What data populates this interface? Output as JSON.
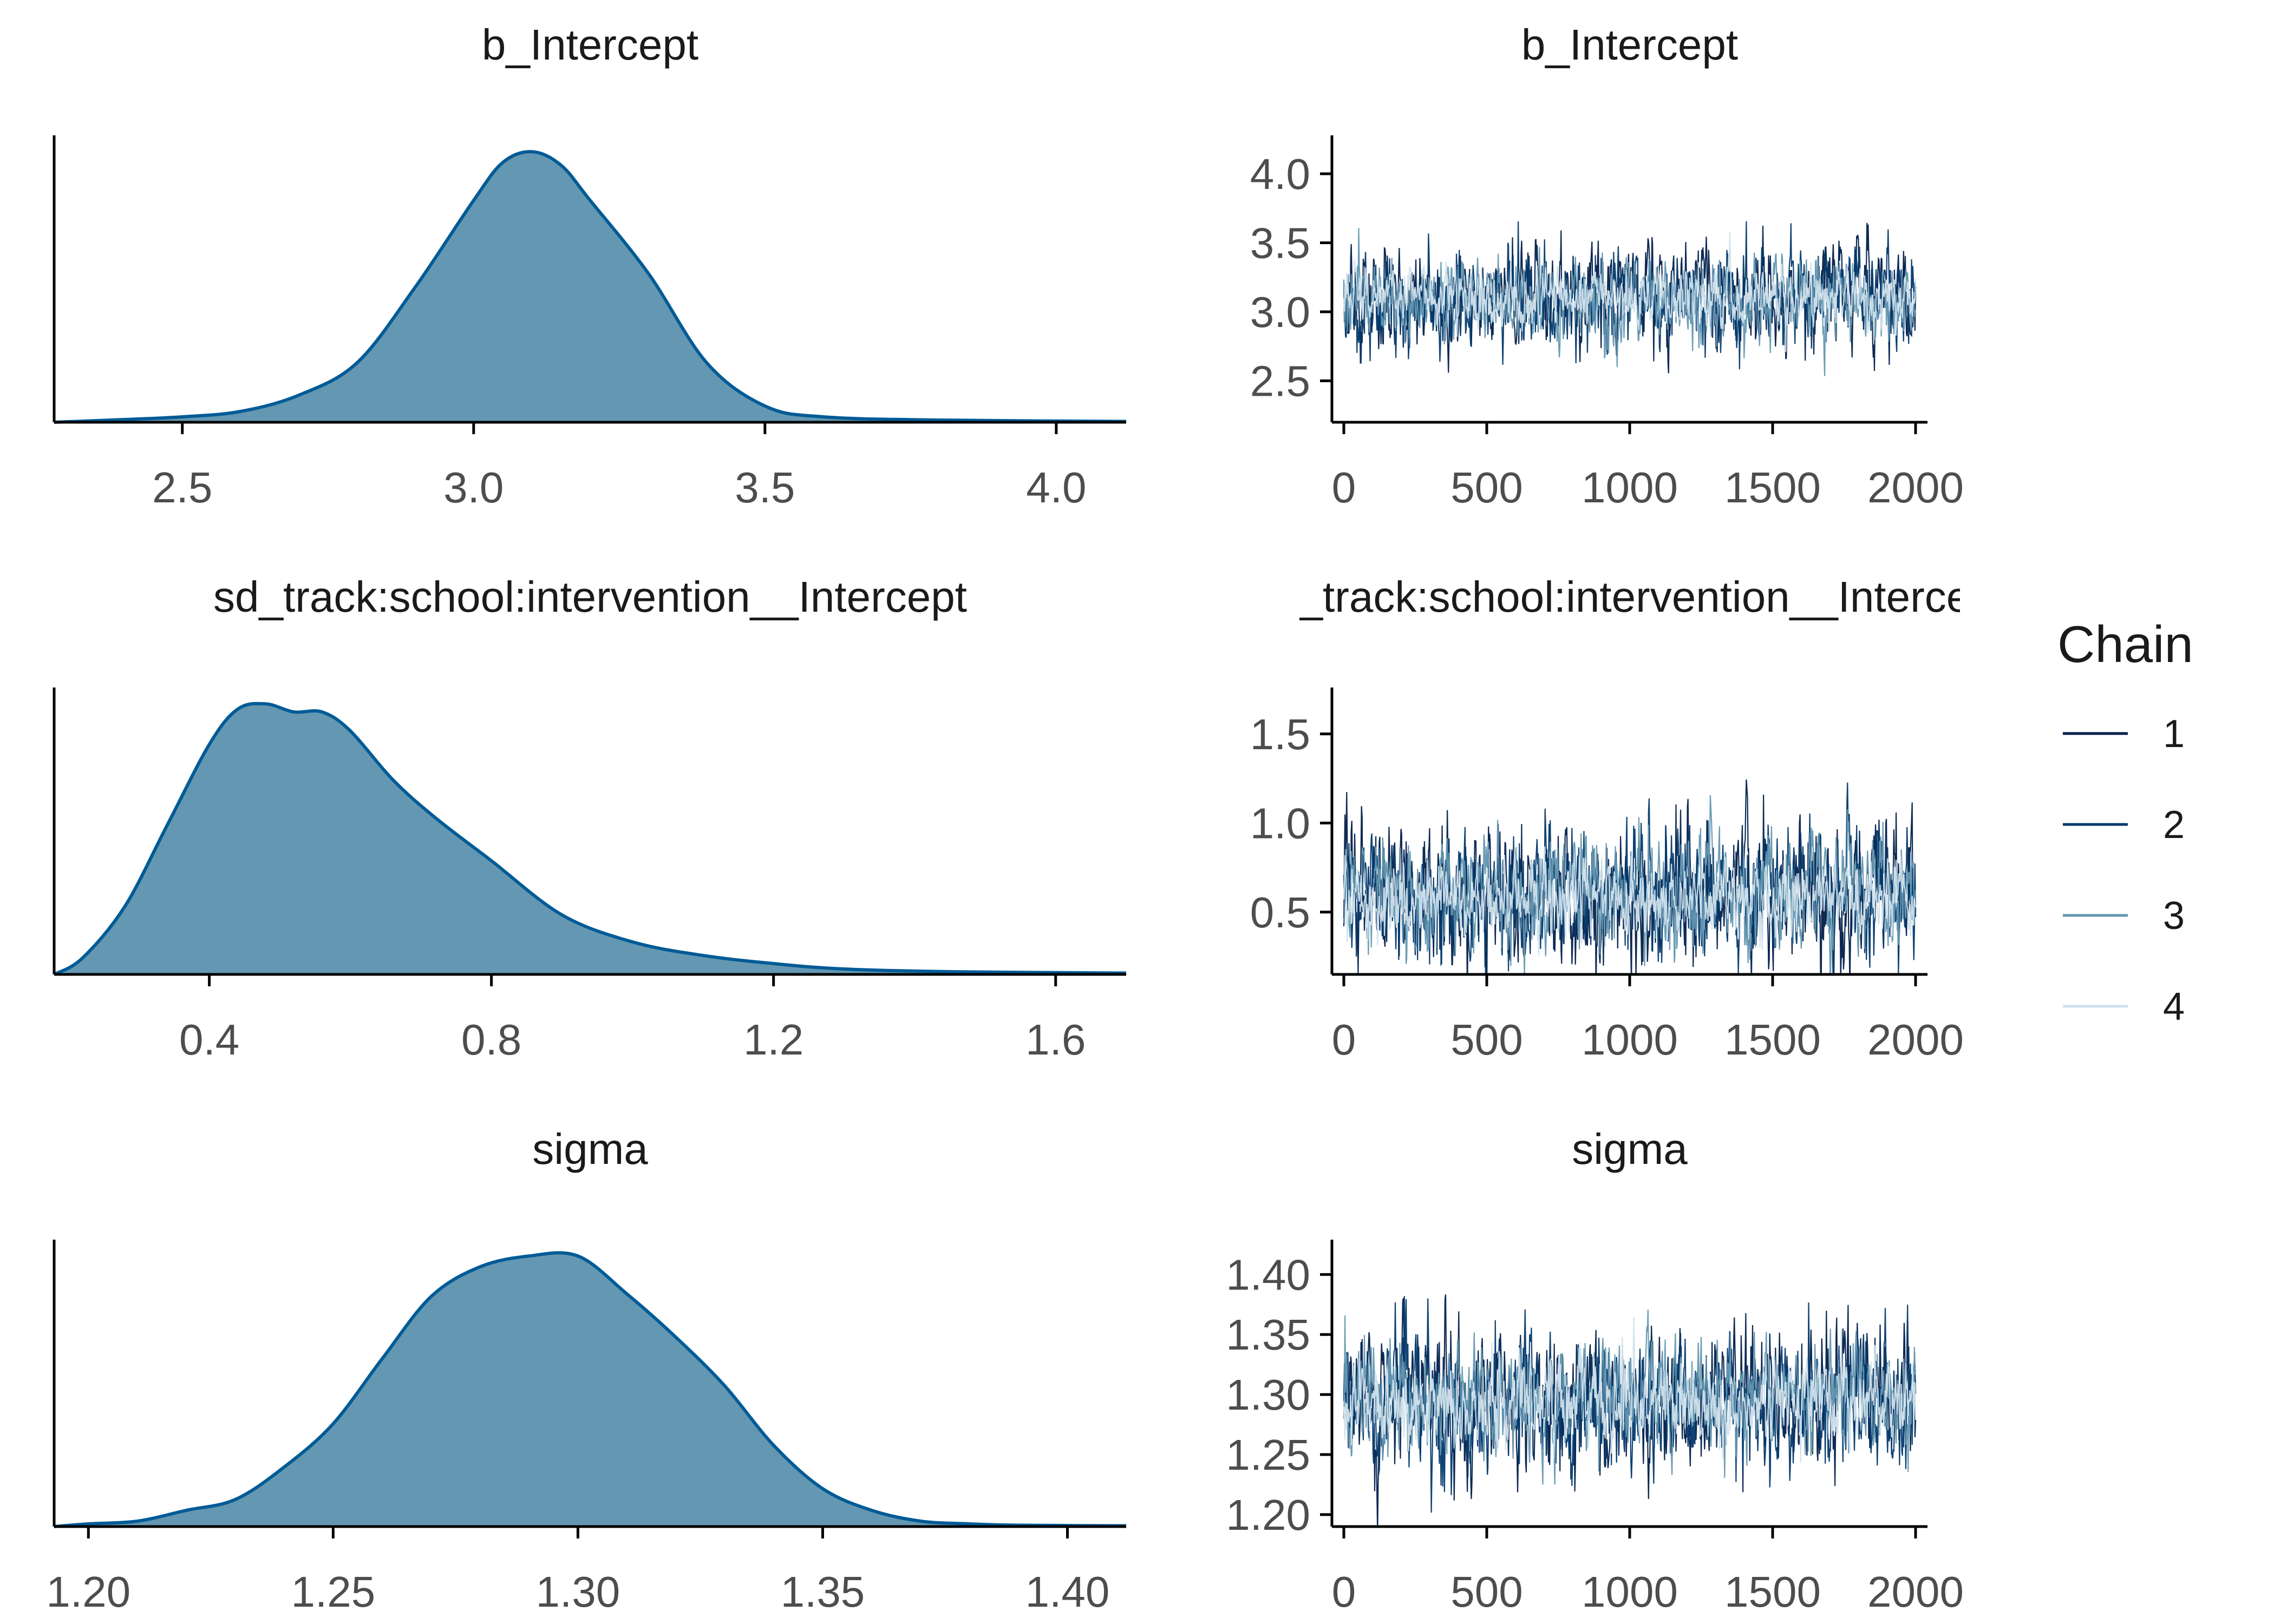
{
  "legend": {
    "title": "Chain",
    "items": [
      {
        "label": "1",
        "color": "#011f4b"
      },
      {
        "label": "2",
        "color": "#03396c"
      },
      {
        "label": "3",
        "color": "#6497b1"
      },
      {
        "label": "4",
        "color": "#d1e1ec"
      }
    ]
  },
  "colors": {
    "density_fill": "#6497b1",
    "density_line": "#005b96",
    "axis": "#000000"
  },
  "chart_data": [
    {
      "type": "area",
      "title": "b_Intercept",
      "xlim": [
        2.28,
        4.12
      ],
      "x_ticks": [
        2.5,
        3.0,
        3.5,
        4.0
      ],
      "x_tick_labels": [
        "2.5",
        "3.0",
        "3.5",
        "4.0"
      ],
      "x": [
        2.28,
        2.4,
        2.5,
        2.6,
        2.7,
        2.8,
        2.9,
        3.0,
        3.05,
        3.1,
        3.15,
        3.2,
        3.3,
        3.4,
        3.5,
        3.6,
        3.8,
        4.12
      ],
      "y": [
        0.0,
        0.01,
        0.02,
        0.04,
        0.1,
        0.22,
        0.5,
        0.82,
        0.96,
        1.0,
        0.95,
        0.82,
        0.55,
        0.22,
        0.06,
        0.02,
        0.008,
        0.003
      ]
    },
    {
      "type": "line",
      "title": "b_Intercept",
      "xlim": [
        0,
        2000
      ],
      "ylim": [
        2.2,
        4.2
      ],
      "x_ticks": [
        0,
        500,
        1000,
        1500,
        2000
      ],
      "x_tick_labels": [
        "0",
        "500",
        "1000",
        "1500",
        "2000"
      ],
      "y_ticks": [
        2.5,
        3.0,
        3.5,
        4.0
      ],
      "y_tick_labels": [
        "2.5",
        "3.0",
        "3.5",
        "4.0"
      ],
      "iterations": 2000,
      "series": [
        {
          "name": "1",
          "center": 3.1,
          "spread": 0.28
        },
        {
          "name": "2",
          "center": 3.1,
          "spread": 0.26
        },
        {
          "name": "3",
          "center": 3.1,
          "spread": 0.22
        },
        {
          "name": "4",
          "center": 3.1,
          "spread": 0.16
        }
      ]
    },
    {
      "type": "area",
      "title": "sd_track:school:intervention__Intercept",
      "xlim": [
        0.18,
        1.7
      ],
      "x_ticks": [
        0.4,
        0.8,
        1.2,
        1.6
      ],
      "x_tick_labels": [
        "0.4",
        "0.8",
        "1.2",
        "1.6"
      ],
      "x": [
        0.18,
        0.22,
        0.28,
        0.34,
        0.4,
        0.44,
        0.48,
        0.52,
        0.56,
        0.6,
        0.66,
        0.72,
        0.8,
        0.9,
        1.0,
        1.1,
        1.2,
        1.3,
        1.45,
        1.7
      ],
      "y": [
        0.0,
        0.06,
        0.25,
        0.55,
        0.85,
        0.98,
        1.0,
        0.97,
        0.97,
        0.9,
        0.72,
        0.58,
        0.42,
        0.22,
        0.12,
        0.07,
        0.04,
        0.02,
        0.01,
        0.005
      ]
    },
    {
      "type": "line",
      "title": "sd_track:school:intervention__Intercept",
      "xlim": [
        0,
        2000
      ],
      "ylim": [
        0.15,
        1.7
      ],
      "x_ticks": [
        0,
        500,
        1000,
        1500,
        2000
      ],
      "x_tick_labels": [
        "0",
        "500",
        "1000",
        "1500",
        "2000"
      ],
      "y_ticks": [
        0.5,
        1.0,
        1.5
      ],
      "y_tick_labels": [
        "0.5",
        "1.0",
        "1.5"
      ],
      "iterations": 2000,
      "series": [
        {
          "name": "1",
          "center": 0.6,
          "spread": 0.3
        },
        {
          "name": "2",
          "center": 0.6,
          "spread": 0.28
        },
        {
          "name": "3",
          "center": 0.6,
          "spread": 0.24
        },
        {
          "name": "4",
          "center": 0.58,
          "spread": 0.16
        }
      ]
    },
    {
      "type": "area",
      "title": "sigma",
      "xlim": [
        1.193,
        1.412
      ],
      "x_ticks": [
        1.2,
        1.25,
        1.3,
        1.35,
        1.4
      ],
      "x_tick_labels": [
        "1.20",
        "1.25",
        "1.30",
        "1.35",
        "1.40"
      ],
      "x": [
        1.193,
        1.2,
        1.21,
        1.22,
        1.23,
        1.24,
        1.25,
        1.26,
        1.27,
        1.28,
        1.29,
        1.3,
        1.31,
        1.32,
        1.33,
        1.34,
        1.35,
        1.36,
        1.37,
        1.38,
        1.39,
        1.412
      ],
      "y": [
        0.0,
        0.01,
        0.02,
        0.06,
        0.1,
        0.22,
        0.38,
        0.62,
        0.85,
        0.96,
        1.0,
        1.0,
        0.86,
        0.7,
        0.52,
        0.3,
        0.14,
        0.06,
        0.02,
        0.01,
        0.005,
        0.003
      ]
    },
    {
      "type": "line",
      "title": "sigma",
      "xlim": [
        0,
        2000
      ],
      "ylim": [
        1.19,
        1.42
      ],
      "x_ticks": [
        0,
        500,
        1000,
        1500,
        2000
      ],
      "x_tick_labels": [
        "0",
        "500",
        "1000",
        "1500",
        "2000"
      ],
      "y_ticks": [
        1.2,
        1.25,
        1.3,
        1.35,
        1.4
      ],
      "y_tick_labels": [
        "1.20",
        "1.25",
        "1.30",
        "1.35",
        "1.40"
      ],
      "iterations": 2000,
      "series": [
        {
          "name": "1",
          "center": 1.295,
          "spread": 0.045
        },
        {
          "name": "2",
          "center": 1.295,
          "spread": 0.042
        },
        {
          "name": "3",
          "center": 1.295,
          "spread": 0.036
        },
        {
          "name": "4",
          "center": 1.295,
          "spread": 0.026
        }
      ]
    }
  ]
}
